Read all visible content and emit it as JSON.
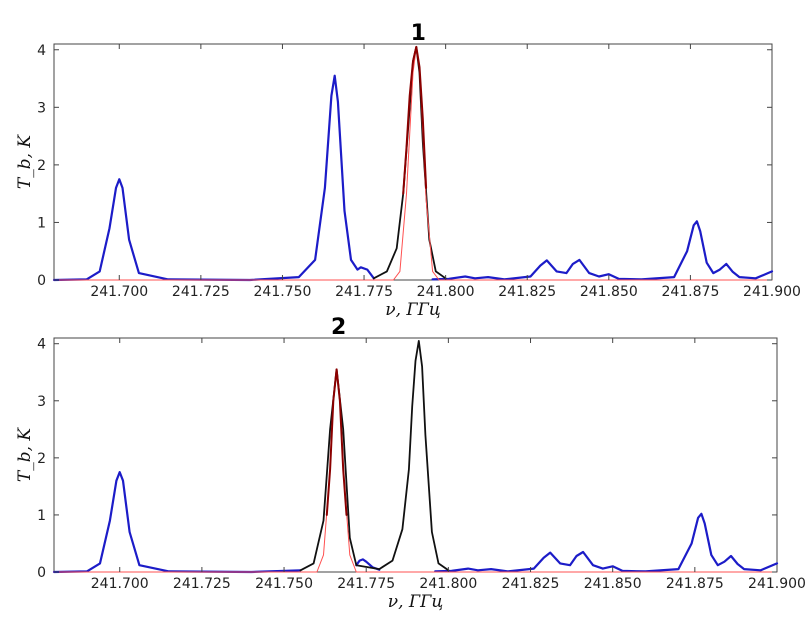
{
  "chart_data": [
    {
      "type": "line",
      "panel": "top",
      "xlabel": "ν, ГГц",
      "ylabel": "T_b, K",
      "xlim": [
        241.68,
        241.9
      ],
      "ylim": [
        0,
        4.1
      ],
      "xticks": [
        241.7,
        241.725,
        241.75,
        241.775,
        241.8,
        241.825,
        241.85,
        241.875,
        241.9
      ],
      "xtick_labels": [
        "241.700",
        "241.725",
        "241.750",
        "241.775",
        "241.800",
        "241.825",
        "241.850",
        "241.875",
        "241.900"
      ],
      "yticks": [
        0,
        1,
        2,
        3,
        4
      ],
      "ytick_labels": [
        "0",
        "1",
        "2",
        "3",
        "4"
      ],
      "annotation": {
        "text": "1",
        "x": 241.791
      },
      "grid": false,
      "series": [
        {
          "role": "spectrum",
          "color": "#1c1cc8",
          "x": [
            241.68,
            241.69,
            241.694,
            241.697,
            241.699,
            241.7,
            241.701,
            241.703,
            241.706,
            241.715,
            241.74,
            241.755,
            241.76,
            241.763,
            241.765,
            241.766,
            241.767,
            241.769,
            241.771,
            241.773,
            241.774,
            241.776,
            241.778
          ],
          "y": [
            0.0,
            0.01,
            0.15,
            0.9,
            1.6,
            1.75,
            1.6,
            0.7,
            0.12,
            0.01,
            0.0,
            0.05,
            0.35,
            1.6,
            3.2,
            3.55,
            3.1,
            1.2,
            0.35,
            0.18,
            0.22,
            0.18,
            0.03
          ]
        },
        {
          "role": "spectrum",
          "color": "#1c1cc8",
          "x": [
            241.796,
            241.801,
            241.806,
            241.809,
            241.813,
            241.818,
            241.826,
            241.829,
            241.831,
            241.834,
            241.837,
            241.839,
            241.841,
            241.844,
            241.847,
            241.85,
            241.853,
            241.86,
            241.87,
            241.874,
            241.876,
            241.877,
            241.878,
            241.88,
            241.882,
            241.884,
            241.886,
            241.888,
            241.89,
            241.895,
            241.9
          ],
          "y": [
            0.01,
            0.02,
            0.06,
            0.03,
            0.05,
            0.01,
            0.06,
            0.25,
            0.34,
            0.15,
            0.12,
            0.28,
            0.35,
            0.12,
            0.06,
            0.1,
            0.02,
            0.01,
            0.05,
            0.5,
            0.95,
            1.02,
            0.85,
            0.3,
            0.12,
            0.18,
            0.28,
            0.14,
            0.05,
            0.03,
            0.15
          ]
        },
        {
          "role": "total-fit",
          "color": "#111111",
          "x": [
            241.778,
            241.782,
            241.785,
            241.787,
            241.789,
            241.79,
            241.791,
            241.792,
            241.793,
            241.795,
            241.797,
            241.8
          ],
          "y": [
            0.03,
            0.15,
            0.55,
            1.5,
            3.0,
            3.8,
            4.05,
            3.6,
            2.4,
            0.7,
            0.15,
            0.03
          ]
        },
        {
          "role": "component",
          "color": "#ff5050",
          "x": [
            241.68,
            241.784,
            241.786,
            241.788,
            241.79,
            241.791,
            241.792,
            241.794,
            241.796,
            241.798,
            241.9
          ],
          "y": [
            0.0,
            0.0,
            0.15,
            1.5,
            3.6,
            4.05,
            3.7,
            1.4,
            0.15,
            0.0,
            0.0
          ]
        },
        {
          "role": "highlighted-peak",
          "color": "#8b0000",
          "x": [
            241.787,
            241.788,
            241.789,
            241.79,
            241.791,
            241.792,
            241.793,
            241.794
          ],
          "y": [
            1.5,
            2.3,
            3.2,
            3.8,
            4.05,
            3.7,
            2.8,
            1.6
          ]
        }
      ]
    },
    {
      "type": "line",
      "panel": "bottom",
      "xlabel": "ν, ГГц",
      "ylabel": "T_b, K",
      "xlim": [
        241.68,
        241.9
      ],
      "ylim": [
        0,
        4.1
      ],
      "xticks": [
        241.7,
        241.725,
        241.75,
        241.775,
        241.8,
        241.825,
        241.85,
        241.875,
        241.9
      ],
      "xtick_labels": [
        "241.700",
        "241.725",
        "241.750",
        "241.775",
        "241.800",
        "241.825",
        "241.850",
        "241.875",
        "241.900"
      ],
      "yticks": [
        0,
        1,
        2,
        3,
        4
      ],
      "ytick_labels": [
        "0",
        "1",
        "2",
        "3",
        "4"
      ],
      "annotation": {
        "text": "2",
        "x": 241.766
      },
      "grid": false,
      "series": [
        {
          "role": "spectrum",
          "color": "#1c1cc8",
          "x": [
            241.68,
            241.69,
            241.694,
            241.697,
            241.699,
            241.7,
            241.701,
            241.703,
            241.706,
            241.715,
            241.74,
            241.755
          ],
          "y": [
            0.0,
            0.01,
            0.15,
            0.9,
            1.6,
            1.75,
            1.6,
            0.7,
            0.12,
            0.01,
            0.0,
            0.03
          ]
        },
        {
          "role": "spectrum",
          "color": "#1c1cc8",
          "x": [
            241.772,
            241.773,
            241.774,
            241.775,
            241.777,
            241.779
          ],
          "y": [
            0.12,
            0.2,
            0.22,
            0.18,
            0.08,
            0.04
          ]
        },
        {
          "role": "spectrum",
          "color": "#1c1cc8",
          "x": [
            241.796,
            241.801,
            241.806,
            241.809,
            241.813,
            241.818,
            241.826,
            241.829,
            241.831,
            241.834,
            241.837,
            241.839,
            241.841,
            241.844,
            241.847,
            241.85,
            241.853,
            241.86,
            241.87,
            241.874,
            241.876,
            241.877,
            241.878,
            241.88,
            241.882,
            241.884,
            241.886,
            241.888,
            241.89,
            241.895,
            241.9
          ],
          "y": [
            0.01,
            0.02,
            0.06,
            0.03,
            0.05,
            0.01,
            0.06,
            0.25,
            0.34,
            0.15,
            0.12,
            0.28,
            0.35,
            0.12,
            0.06,
            0.1,
            0.02,
            0.01,
            0.05,
            0.5,
            0.95,
            1.02,
            0.85,
            0.3,
            0.12,
            0.18,
            0.28,
            0.14,
            0.05,
            0.03,
            0.15
          ]
        },
        {
          "role": "total-fit",
          "color": "#111111",
          "x": [
            241.755,
            241.759,
            241.762,
            241.764,
            241.766,
            241.768,
            241.77,
            241.772,
            241.779,
            241.783,
            241.786,
            241.788,
            241.789,
            241.79,
            241.791,
            241.792,
            241.793,
            241.795,
            241.797,
            241.8
          ],
          "y": [
            0.03,
            0.15,
            0.9,
            2.5,
            3.55,
            2.5,
            0.6,
            0.12,
            0.05,
            0.2,
            0.75,
            1.8,
            2.9,
            3.7,
            4.05,
            3.6,
            2.4,
            0.7,
            0.15,
            0.03
          ]
        },
        {
          "role": "component",
          "color": "#ff5050",
          "x": [
            241.68,
            241.76,
            241.762,
            241.764,
            241.765,
            241.766,
            241.767,
            241.768,
            241.77,
            241.772,
            241.9
          ],
          "y": [
            0.0,
            0.0,
            0.3,
            1.8,
            3.0,
            3.55,
            3.0,
            1.8,
            0.3,
            0.0,
            0.0
          ]
        },
        {
          "role": "highlighted-peak",
          "color": "#8b0000",
          "x": [
            241.763,
            241.764,
            241.765,
            241.766,
            241.767,
            241.768,
            241.769
          ],
          "y": [
            1.0,
            1.8,
            3.0,
            3.55,
            3.0,
            1.8,
            1.0
          ]
        }
      ]
    }
  ]
}
